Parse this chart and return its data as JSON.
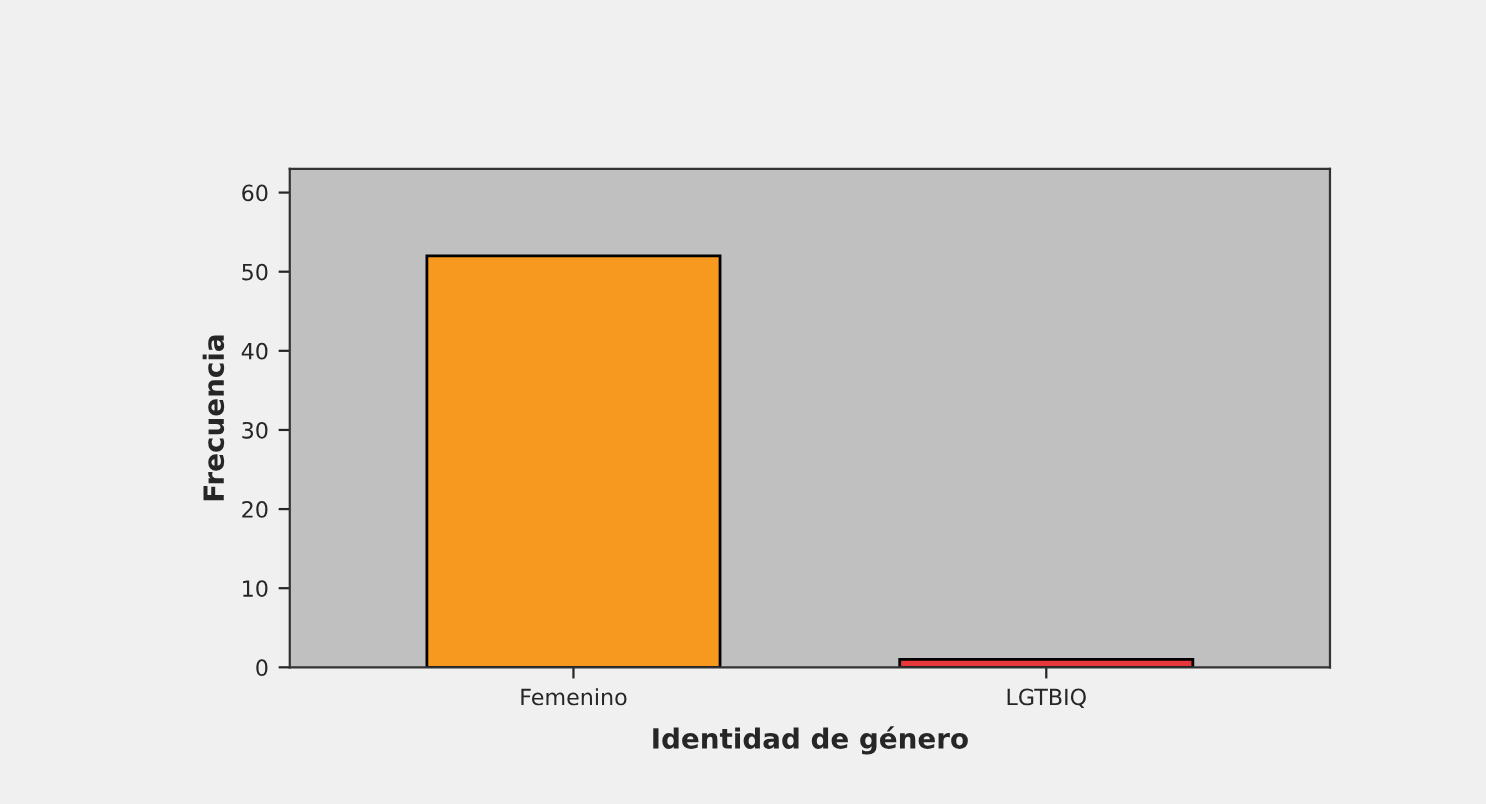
{
  "chart_data": {
    "type": "bar",
    "xlabel": "Identidad de género",
    "ylabel": "Frecuencia",
    "categories": [
      "Femenino",
      "LGTBIQ"
    ],
    "values": [
      52,
      1
    ],
    "colors": [
      "#f7991f",
      "#e8373a"
    ],
    "ylim": [
      0,
      63
    ],
    "yticks": [
      0,
      10,
      20,
      30,
      40,
      50,
      60
    ],
    "grid": false,
    "legend": false
  }
}
